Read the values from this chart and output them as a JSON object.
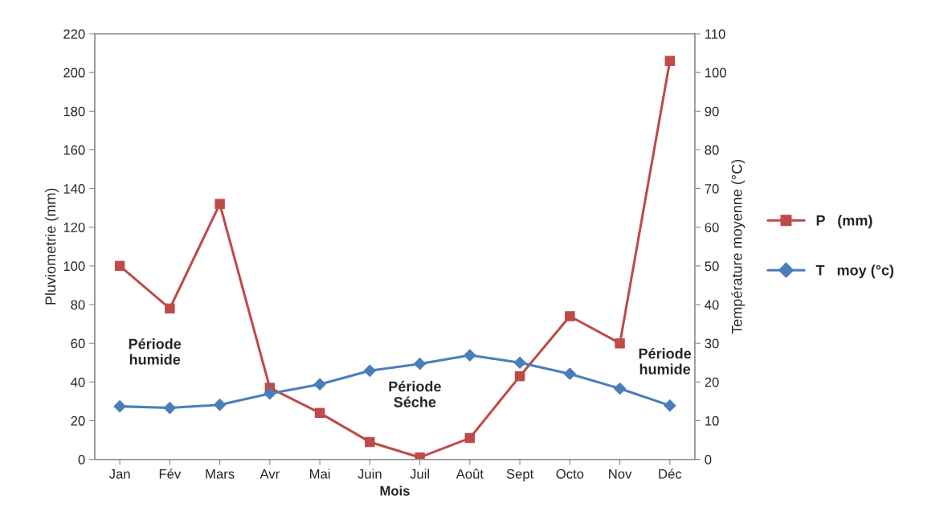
{
  "chart_data": {
    "type": "line",
    "xlabel": "Mois",
    "ylabel": "Pluviometrie (mm)",
    "y2label": "Température moyenne (°C)",
    "categories": [
      "Jan",
      "Fév",
      "Mars",
      "Avr",
      "Mai",
      "Juin",
      "Juil",
      "Août",
      "Sept",
      "Octo",
      "Nov",
      "Déc"
    ],
    "series": [
      {
        "name": "P   (mm)",
        "color": "#be4b48",
        "marker": "square",
        "values": [
          100,
          78,
          132,
          37,
          24,
          9,
          1,
          11,
          43,
          74,
          60,
          206
        ]
      },
      {
        "name": "T   moy (°c)",
        "color": "#4a7ebb",
        "marker": "diamond",
        "axis": "y2",
        "values": [
          13.7,
          13.3,
          14.1,
          17.0,
          19.4,
          22.9,
          24.7,
          26.9,
          25.0,
          22.1,
          18.3,
          13.9
        ]
      }
    ],
    "ylim": [
      0,
      220
    ],
    "yticks": [
      0,
      20,
      40,
      60,
      80,
      100,
      120,
      140,
      160,
      180,
      200,
      220
    ],
    "y2lim": [
      0,
      110
    ],
    "y2ticks": [
      0,
      10,
      20,
      30,
      40,
      50,
      60,
      70,
      80,
      90,
      100,
      110
    ],
    "annotations": [
      "Période\nhumide",
      "Période\nSéche",
      "Période\nhumide"
    ],
    "legend": "right",
    "grid": false
  }
}
